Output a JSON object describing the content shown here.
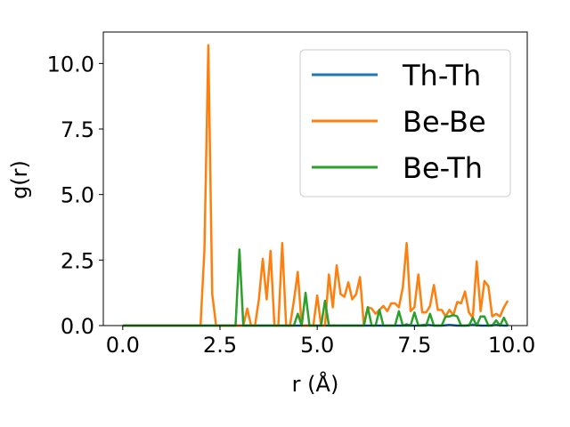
{
  "chart_data": {
    "type": "line",
    "title": "",
    "xlabel": "r (Å)",
    "ylabel": "g(r)",
    "xlim": [
      -0.5,
      10.4
    ],
    "ylim": [
      0,
      11.2
    ],
    "xticks": [
      0.0,
      2.5,
      5.0,
      7.5,
      10.0
    ],
    "xtick_labels": [
      "0.0",
      "2.5",
      "5.0",
      "7.5",
      "10.0"
    ],
    "yticks": [
      0.0,
      2.5,
      5.0,
      7.5,
      10.0
    ],
    "ytick_labels": [
      "0.0",
      "2.5",
      "5.0",
      "7.5",
      "10.0"
    ],
    "grid": false,
    "legend_position": "top-right",
    "series": [
      {
        "name": "Th-Th",
        "color": "#1f77b4",
        "x": [
          0.0,
          2.0,
          4.0,
          6.0,
          7.0,
          7.2,
          7.3,
          7.4,
          7.6,
          7.8,
          8.0,
          8.2,
          8.4,
          8.6,
          8.8,
          9.0,
          9.2,
          9.4,
          9.6,
          9.8,
          9.9
        ],
        "y": [
          0,
          0,
          0,
          0,
          0,
          0,
          0.05,
          0,
          0,
          0.04,
          0,
          0,
          0.03,
          0,
          0,
          0.04,
          0,
          0,
          0.03,
          0,
          0
        ]
      },
      {
        "name": "Be-Be",
        "color": "#ff7f0e",
        "x": [
          0.0,
          1.9,
          2.0,
          2.1,
          2.2,
          2.3,
          2.4,
          2.5,
          2.6,
          2.7,
          2.8,
          2.9,
          3.0,
          3.1,
          3.2,
          3.3,
          3.4,
          3.5,
          3.6,
          3.7,
          3.8,
          3.9,
          4.0,
          4.1,
          4.2,
          4.3,
          4.4,
          4.5,
          4.6,
          4.7,
          4.8,
          4.9,
          5.0,
          5.1,
          5.2,
          5.3,
          5.4,
          5.5,
          5.6,
          5.7,
          5.8,
          5.9,
          6.0,
          6.1,
          6.2,
          6.3,
          6.4,
          6.5,
          6.6,
          6.7,
          6.8,
          6.9,
          7.0,
          7.1,
          7.2,
          7.3,
          7.4,
          7.5,
          7.6,
          7.7,
          7.8,
          7.9,
          8.0,
          8.1,
          8.2,
          8.3,
          8.4,
          8.5,
          8.6,
          8.7,
          8.8,
          8.9,
          9.0,
          9.1,
          9.2,
          9.3,
          9.4,
          9.5,
          9.6,
          9.7,
          9.8,
          9.9
        ],
        "y": [
          0,
          0,
          0,
          2.9,
          10.7,
          1.2,
          0,
          0,
          0,
          0,
          0,
          0,
          0,
          0,
          0.65,
          0,
          0,
          1.0,
          2.55,
          1.0,
          2.85,
          0,
          0,
          3.15,
          0,
          0,
          0.95,
          2.05,
          0,
          0,
          0,
          0,
          1.15,
          0,
          0,
          1.95,
          0.7,
          2.3,
          1.2,
          1.1,
          1.65,
          1.0,
          1.2,
          1.85,
          0,
          0.7,
          0.65,
          0.45,
          0.6,
          0.75,
          0.55,
          0.85,
          0.85,
          0.7,
          1.45,
          3.15,
          0.55,
          0.7,
          1.95,
          0.5,
          0.5,
          0.75,
          1.55,
          0.6,
          0.6,
          0.35,
          0.6,
          0.4,
          0.9,
          0.85,
          1.3,
          0.5,
          0.3,
          2.45,
          0.55,
          1.7,
          1.5,
          0.35,
          0.45,
          0.35,
          0.7,
          0.95
        ]
      },
      {
        "name": "Be-Th",
        "color": "#2ca02c",
        "x": [
          0.0,
          2.8,
          2.9,
          3.0,
          3.1,
          3.2,
          4.3,
          4.4,
          4.5,
          4.6,
          4.7,
          4.8,
          5.0,
          5.1,
          5.2,
          5.3,
          5.4,
          6.1,
          6.2,
          6.3,
          6.4,
          6.5,
          6.6,
          6.7,
          6.8,
          6.9,
          7.0,
          7.1,
          7.2,
          7.3,
          7.4,
          7.5,
          7.6,
          7.7,
          7.8,
          7.9,
          8.0,
          8.1,
          8.2,
          8.3,
          8.4,
          8.5,
          8.6,
          8.7,
          8.8,
          8.9,
          9.0,
          9.1,
          9.2,
          9.3,
          9.4,
          9.5,
          9.6,
          9.7,
          9.8,
          9.9
        ],
        "y": [
          0,
          0,
          0,
          2.9,
          0,
          0,
          0,
          0,
          0.45,
          0,
          1.25,
          0,
          0,
          0,
          0.95,
          0,
          0,
          0,
          0,
          0.7,
          0,
          0,
          0.6,
          0,
          0,
          0,
          0,
          0.55,
          0,
          0,
          0,
          0.5,
          0,
          0,
          0,
          0.45,
          0,
          0,
          0,
          0.35,
          0.35,
          0.4,
          0.35,
          0,
          0,
          0,
          0.3,
          0,
          0.35,
          0.35,
          0,
          0,
          0.2,
          0,
          0.3,
          0
        ]
      }
    ]
  }
}
